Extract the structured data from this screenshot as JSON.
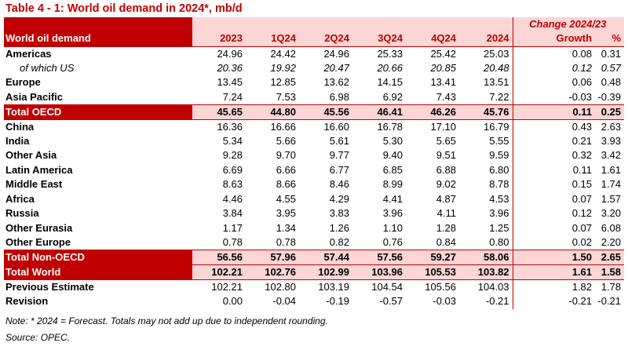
{
  "title": "Table 4 - 1: World oil demand in 2024*, mb/d",
  "header": {
    "row_label": "World oil demand",
    "change_label": "Change 2024/23",
    "columns": [
      "2023",
      "1Q24",
      "2Q24",
      "3Q24",
      "4Q24",
      "2024",
      "Growth",
      "%"
    ]
  },
  "rows": [
    {
      "label": "Americas",
      "style": "normal",
      "values": [
        "24.96",
        "24.42",
        "24.96",
        "25.33",
        "25.42",
        "25.03",
        "0.08",
        "0.31"
      ]
    },
    {
      "label": "of which US",
      "style": "italic",
      "values": [
        "20.36",
        "19.92",
        "20.47",
        "20.66",
        "20.85",
        "20.48",
        "0.12",
        "0.57"
      ]
    },
    {
      "label": "Europe",
      "style": "normal",
      "values": [
        "13.45",
        "12.85",
        "13.62",
        "14.15",
        "13.41",
        "13.51",
        "0.06",
        "0.48"
      ]
    },
    {
      "label": "Asia Pacific",
      "style": "normal",
      "values": [
        "7.24",
        "7.53",
        "6.98",
        "6.92",
        "7.43",
        "7.22",
        "-0.03",
        "-0.39"
      ]
    },
    {
      "label": "Total OECD",
      "style": "total",
      "values": [
        "45.65",
        "44.80",
        "45.56",
        "46.41",
        "46.26",
        "45.76",
        "0.11",
        "0.25"
      ]
    },
    {
      "label": "China",
      "style": "normal",
      "values": [
        "16.36",
        "16.66",
        "16.60",
        "16.78",
        "17.10",
        "16.79",
        "0.43",
        "2.63"
      ]
    },
    {
      "label": "India",
      "style": "normal",
      "values": [
        "5.34",
        "5.66",
        "5.61",
        "5.30",
        "5.65",
        "5.55",
        "0.21",
        "3.93"
      ]
    },
    {
      "label": "Other Asia",
      "style": "normal",
      "values": [
        "9.28",
        "9.70",
        "9.77",
        "9.40",
        "9.51",
        "9.59",
        "0.32",
        "3.42"
      ]
    },
    {
      "label": "Latin America",
      "style": "normal",
      "values": [
        "6.69",
        "6.66",
        "6.77",
        "6.85",
        "6.88",
        "6.80",
        "0.11",
        "1.61"
      ]
    },
    {
      "label": "Middle East",
      "style": "normal",
      "values": [
        "8.63",
        "8.66",
        "8.46",
        "8.99",
        "9.02",
        "8.78",
        "0.15",
        "1.74"
      ]
    },
    {
      "label": "Africa",
      "style": "normal",
      "values": [
        "4.46",
        "4.55",
        "4.29",
        "4.41",
        "4.87",
        "4.53",
        "0.07",
        "1.57"
      ]
    },
    {
      "label": "Russia",
      "style": "normal",
      "values": [
        "3.84",
        "3.95",
        "3.83",
        "3.96",
        "4.11",
        "3.96",
        "0.12",
        "3.20"
      ]
    },
    {
      "label": "Other Eurasia",
      "style": "normal",
      "values": [
        "1.17",
        "1.34",
        "1.26",
        "1.10",
        "1.28",
        "1.25",
        "0.07",
        "6.08"
      ]
    },
    {
      "label": "Other Europe",
      "style": "normal",
      "values": [
        "0.78",
        "0.78",
        "0.82",
        "0.76",
        "0.84",
        "0.80",
        "0.02",
        "2.20"
      ]
    },
    {
      "label": "Total Non-OECD",
      "style": "total",
      "values": [
        "56.56",
        "57.96",
        "57.44",
        "57.56",
        "59.27",
        "58.06",
        "1.50",
        "2.65"
      ]
    },
    {
      "label": "Total World",
      "style": "total",
      "values": [
        "102.21",
        "102.76",
        "102.99",
        "103.96",
        "105.53",
        "103.82",
        "1.61",
        "1.58"
      ]
    },
    {
      "label": "Previous Estimate",
      "style": "normal",
      "values": [
        "102.21",
        "102.80",
        "103.19",
        "104.54",
        "105.56",
        "104.03",
        "1.82",
        "1.78"
      ]
    },
    {
      "label": "Revision",
      "style": "normal",
      "values": [
        "0.00",
        "-0.04",
        "-0.19",
        "-0.57",
        "-0.03",
        "-0.21",
        "-0.21",
        "-0.21"
      ]
    }
  ],
  "note": "Note: * 2024 = Forecast. Totals may not add up due to independent rounding.",
  "source": "Source: OPEC.",
  "colors": {
    "accent": "#c00000",
    "highlight": "#fcd5d5"
  }
}
